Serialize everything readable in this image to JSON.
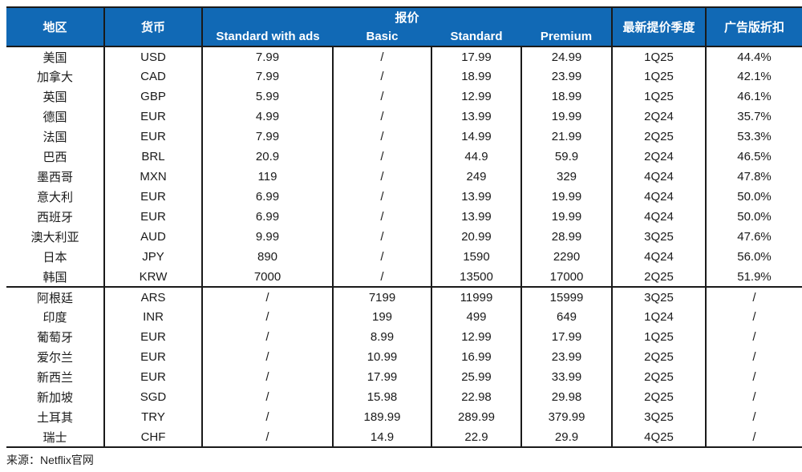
{
  "colors": {
    "header_bg": "#1169B5",
    "header_text": "#FFFFFF",
    "border": "#1A1A1A",
    "body_text": "#1A1A1A"
  },
  "table": {
    "headers": {
      "region": "地区",
      "currency": "货币",
      "price_group": "报价",
      "plans": [
        "Standard with ads",
        "Basic",
        "Standard",
        "Premium"
      ],
      "latest_hike_quarter": "最新提价季度",
      "ad_discount": "广告版折扣"
    },
    "sections": [
      {
        "rows": [
          {
            "region": "美国",
            "currency": "USD",
            "standard_with_ads": "7.99",
            "basic": "/",
            "standard": "17.99",
            "premium": "24.99",
            "latest_hike_quarter": "1Q25",
            "ad_discount": "44.4%"
          },
          {
            "region": "加拿大",
            "currency": "CAD",
            "standard_with_ads": "7.99",
            "basic": "/",
            "standard": "18.99",
            "premium": "23.99",
            "latest_hike_quarter": "1Q25",
            "ad_discount": "42.1%"
          },
          {
            "region": "英国",
            "currency": "GBP",
            "standard_with_ads": "5.99",
            "basic": "/",
            "standard": "12.99",
            "premium": "18.99",
            "latest_hike_quarter": "1Q25",
            "ad_discount": "46.1%"
          },
          {
            "region": "德国",
            "currency": "EUR",
            "standard_with_ads": "4.99",
            "basic": "/",
            "standard": "13.99",
            "premium": "19.99",
            "latest_hike_quarter": "2Q24",
            "ad_discount": "35.7%"
          },
          {
            "region": "法国",
            "currency": "EUR",
            "standard_with_ads": "7.99",
            "basic": "/",
            "standard": "14.99",
            "premium": "21.99",
            "latest_hike_quarter": "2Q25",
            "ad_discount": "53.3%"
          },
          {
            "region": "巴西",
            "currency": "BRL",
            "standard_with_ads": "20.9",
            "basic": "/",
            "standard": "44.9",
            "premium": "59.9",
            "latest_hike_quarter": "2Q24",
            "ad_discount": "46.5%"
          },
          {
            "region": "墨西哥",
            "currency": "MXN",
            "standard_with_ads": "119",
            "basic": "/",
            "standard": "249",
            "premium": "329",
            "latest_hike_quarter": "4Q24",
            "ad_discount": "47.8%"
          },
          {
            "region": "意大利",
            "currency": "EUR",
            "standard_with_ads": "6.99",
            "basic": "/",
            "standard": "13.99",
            "premium": "19.99",
            "latest_hike_quarter": "4Q24",
            "ad_discount": "50.0%"
          },
          {
            "region": "西班牙",
            "currency": "EUR",
            "standard_with_ads": "6.99",
            "basic": "/",
            "standard": "13.99",
            "premium": "19.99",
            "latest_hike_quarter": "4Q24",
            "ad_discount": "50.0%"
          },
          {
            "region": "澳大利亚",
            "currency": "AUD",
            "standard_with_ads": "9.99",
            "basic": "/",
            "standard": "20.99",
            "premium": "28.99",
            "latest_hike_quarter": "3Q25",
            "ad_discount": "47.6%"
          },
          {
            "region": "日本",
            "currency": "JPY",
            "standard_with_ads": "890",
            "basic": "/",
            "standard": "1590",
            "premium": "2290",
            "latest_hike_quarter": "4Q24",
            "ad_discount": "56.0%"
          },
          {
            "region": "韩国",
            "currency": "KRW",
            "standard_with_ads": "7000",
            "basic": "/",
            "standard": "13500",
            "premium": "17000",
            "latest_hike_quarter": "2Q25",
            "ad_discount": "51.9%"
          }
        ]
      },
      {
        "rows": [
          {
            "region": "阿根廷",
            "currency": "ARS",
            "standard_with_ads": "/",
            "basic": "7199",
            "standard": "11999",
            "premium": "15999",
            "latest_hike_quarter": "3Q25",
            "ad_discount": "/"
          },
          {
            "region": "印度",
            "currency": "INR",
            "standard_with_ads": "/",
            "basic": "199",
            "standard": "499",
            "premium": "649",
            "latest_hike_quarter": "1Q24",
            "ad_discount": "/"
          },
          {
            "region": "葡萄牙",
            "currency": "EUR",
            "standard_with_ads": "/",
            "basic": "8.99",
            "standard": "12.99",
            "premium": "17.99",
            "latest_hike_quarter": "1Q25",
            "ad_discount": "/"
          },
          {
            "region": "爱尔兰",
            "currency": "EUR",
            "standard_with_ads": "/",
            "basic": "10.99",
            "standard": "16.99",
            "premium": "23.99",
            "latest_hike_quarter": "2Q25",
            "ad_discount": "/"
          },
          {
            "region": "新西兰",
            "currency": "EUR",
            "standard_with_ads": "/",
            "basic": "17.99",
            "standard": "25.99",
            "premium": "33.99",
            "latest_hike_quarter": "2Q25",
            "ad_discount": "/"
          },
          {
            "region": "新加坡",
            "currency": "SGD",
            "standard_with_ads": "/",
            "basic": "15.98",
            "standard": "22.98",
            "premium": "29.98",
            "latest_hike_quarter": "2Q25",
            "ad_discount": "/"
          },
          {
            "region": "土耳其",
            "currency": "TRY",
            "standard_with_ads": "/",
            "basic": "189.99",
            "standard": "289.99",
            "premium": "379.99",
            "latest_hike_quarter": "3Q25",
            "ad_discount": "/"
          },
          {
            "region": "瑞士",
            "currency": "CHF",
            "standard_with_ads": "/",
            "basic": "14.9",
            "standard": "22.9",
            "premium": "29.9",
            "latest_hike_quarter": "4Q25",
            "ad_discount": "/"
          }
        ]
      }
    ]
  },
  "source": "来源：Netflix官网"
}
